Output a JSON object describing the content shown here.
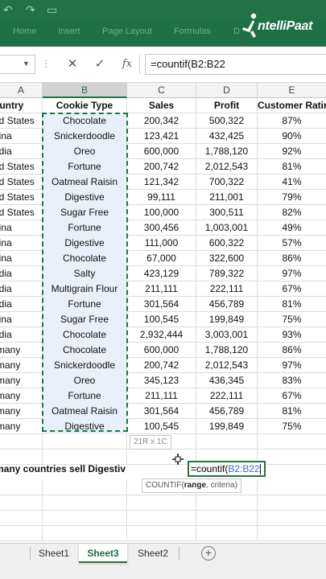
{
  "ribbon": {
    "tabs": [
      "Home",
      "Insert",
      "Page Layout",
      "Formulas",
      "D"
    ],
    "logo_text": "ntelliPaat",
    "qa_icons": [
      "undo-icon",
      "redo-icon",
      "save-icon"
    ]
  },
  "formula_bar": {
    "cancel_glyph": "✕",
    "enter_glyph": "✓",
    "fx_label": "fx",
    "formula": "=countif(B2:B22"
  },
  "columns": [
    "A",
    "B",
    "C",
    "D",
    "E"
  ],
  "table": {
    "headers": [
      "ountry",
      "Cookie Type",
      "Sales",
      "Profit",
      "Customer Ratin"
    ],
    "rows": [
      [
        "ed States",
        "Chocolate",
        "200,342",
        "500,322",
        "87%"
      ],
      [
        "hina",
        "Snickerdoodle",
        "123,421",
        "432,425",
        "90%"
      ],
      [
        "ndia",
        "Oreo",
        "600,000",
        "1,788,120",
        "92%"
      ],
      [
        "ed States",
        "Fortune",
        "200,742",
        "2,012,543",
        "81%"
      ],
      [
        "ed States",
        "Oatmeal Raisin",
        "121,342",
        "700,322",
        "41%"
      ],
      [
        "ed States",
        "Digestive",
        "99,111",
        "211,001",
        "79%"
      ],
      [
        "ed States",
        "Sugar Free",
        "100,000",
        "300,511",
        "82%"
      ],
      [
        "hina",
        "Fortune",
        "300,456",
        "1,003,001",
        "49%"
      ],
      [
        "hina",
        "Digestive",
        "111,000",
        "600,322",
        "57%"
      ],
      [
        "hina",
        "Chocolate",
        "67,000",
        "322,600",
        "86%"
      ],
      [
        "ndia",
        "Salty",
        "423,129",
        "789,322",
        "97%"
      ],
      [
        "ndia",
        "Multigrain Flour",
        "211,111",
        "222,111",
        "67%"
      ],
      [
        "ndia",
        "Fortune",
        "301,564",
        "456,789",
        "81%"
      ],
      [
        "hina",
        "Sugar Free",
        "100,545",
        "199,849",
        "75%"
      ],
      [
        "ndia",
        "Chocolate",
        "2,932,444",
        "3,003,001",
        "93%"
      ],
      [
        "rmany",
        "Chocolate",
        "600,000",
        "1,788,120",
        "86%"
      ],
      [
        "rmany",
        "Snickerdoodle",
        "200,742",
        "2,012,543",
        "97%"
      ],
      [
        "rmany",
        "Oreo",
        "345,123",
        "436,345",
        "83%"
      ],
      [
        "rmany",
        "Fortune",
        "211,111",
        "222,111",
        "67%"
      ],
      [
        "rmany",
        "Oatmeal Raisin",
        "301,564",
        "456,789",
        "81%"
      ],
      [
        "rmany",
        "Digestive",
        "100,545",
        "199,849",
        "75%"
      ]
    ]
  },
  "selection_size": "21R x 1C",
  "question": "many countries sell Digestiv",
  "edit_cell": {
    "prefix": "=countif(",
    "range": "B2:B22"
  },
  "function_tip": {
    "name": "COUNTIF(",
    "arg_bold": "range",
    "rest": ", criteria)"
  },
  "sheets": [
    {
      "label": "Sheet1",
      "active": false
    },
    {
      "label": "Sheet3",
      "active": true
    },
    {
      "label": "Sheet2",
      "active": false
    }
  ],
  "add_sheet_glyph": "+",
  "colors": {
    "excel_green": "#217346",
    "selection_fill": "#e8f1fb",
    "range_ref": "#3a6fb8"
  }
}
